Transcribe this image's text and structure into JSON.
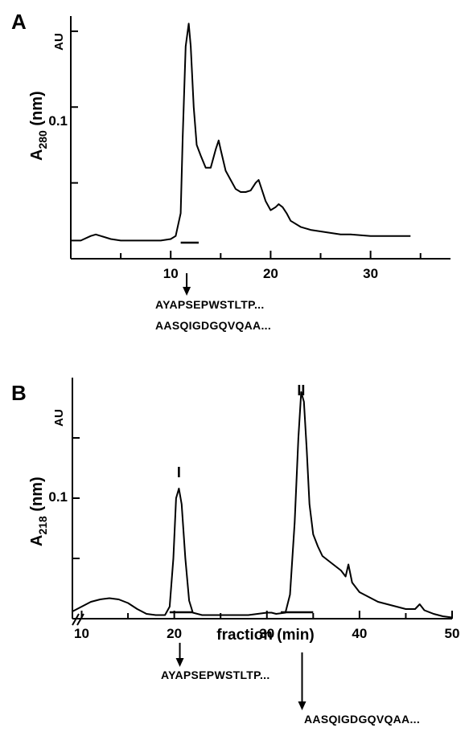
{
  "chart_data": [
    {
      "type": "line",
      "panel": "A",
      "ylabel": "A",
      "ylabel_sub": "280",
      "ylabel_unit": " (nm)",
      "yunit": "AU",
      "ytick_label": "0.1",
      "xlim": [
        0,
        38
      ],
      "ylim": [
        0,
        0.16
      ],
      "xticks": [
        10,
        20,
        30
      ],
      "x_minor_ticks": [
        5,
        15,
        25,
        35
      ],
      "y_ticks": [
        0.05,
        0.1,
        0.15
      ],
      "x": [
        0,
        1,
        2,
        2.5,
        3,
        4,
        5,
        6,
        7,
        8,
        9,
        10,
        10.5,
        11,
        11.2,
        11.5,
        11.8,
        12,
        12.3,
        12.6,
        13,
        13.5,
        14,
        14.5,
        14.8,
        15,
        15.5,
        16,
        16.5,
        17,
        17.5,
        18,
        18.5,
        18.8,
        19,
        19.5,
        20,
        20.5,
        20.8,
        21.2,
        21.6,
        22,
        23,
        24,
        25,
        26,
        27,
        28,
        30,
        32,
        34
      ],
      "y": [
        0.012,
        0.012,
        0.015,
        0.016,
        0.015,
        0.013,
        0.012,
        0.012,
        0.012,
        0.012,
        0.012,
        0.013,
        0.015,
        0.03,
        0.08,
        0.14,
        0.155,
        0.14,
        0.1,
        0.075,
        0.068,
        0.06,
        0.06,
        0.072,
        0.078,
        0.072,
        0.058,
        0.052,
        0.046,
        0.044,
        0.044,
        0.045,
        0.05,
        0.052,
        0.048,
        0.038,
        0.032,
        0.034,
        0.036,
        0.034,
        0.03,
        0.025,
        0.021,
        0.019,
        0.018,
        0.017,
        0.016,
        0.016,
        0.015,
        0.015,
        0.015
      ],
      "collected_fraction": [
        11,
        12.8
      ],
      "arrow_at": 11.6,
      "sequences": [
        "AYAPSEPWSTLTP...",
        "AASQIGDGQVQAA..."
      ]
    },
    {
      "type": "line",
      "panel": "B",
      "ylabel": "A",
      "ylabel_sub": "218",
      "ylabel_unit": " (nm)",
      "yunit": "AU",
      "ytick_label": "0.1",
      "xlabel": "fraction (min)",
      "xlim": [
        9,
        50
      ],
      "ylim": [
        0,
        0.2
      ],
      "xticks": [
        10,
        20,
        30,
        40,
        50
      ],
      "x_minor_ticks": [
        15,
        25,
        35,
        45
      ],
      "y_ticks": [
        0.05,
        0.1,
        0.15
      ],
      "x": [
        9,
        10,
        11,
        12,
        13,
        14,
        15,
        16,
        17,
        18,
        19,
        19.5,
        19.9,
        20.2,
        20.5,
        20.8,
        21.2,
        21.6,
        22,
        23,
        24,
        25,
        26,
        27,
        28,
        29,
        30,
        30.5,
        31,
        32,
        32.5,
        33,
        33.4,
        33.7,
        34,
        34.3,
        34.6,
        35,
        35.5,
        36,
        37,
        38,
        38.5,
        38.8,
        39.2,
        40,
        41,
        42,
        43,
        44,
        45,
        46,
        46.5,
        47,
        48,
        49,
        50
      ],
      "y": [
        0.006,
        0.01,
        0.014,
        0.016,
        0.017,
        0.016,
        0.013,
        0.008,
        0.004,
        0.003,
        0.003,
        0.01,
        0.05,
        0.1,
        0.108,
        0.095,
        0.05,
        0.015,
        0.005,
        0.003,
        0.003,
        0.003,
        0.003,
        0.003,
        0.003,
        0.004,
        0.005,
        0.005,
        0.004,
        0.005,
        0.02,
        0.08,
        0.15,
        0.188,
        0.18,
        0.14,
        0.095,
        0.07,
        0.06,
        0.052,
        0.046,
        0.04,
        0.035,
        0.045,
        0.03,
        0.022,
        0.018,
        0.014,
        0.012,
        0.01,
        0.008,
        0.008,
        0.012,
        0.007,
        0.004,
        0.002,
        0.001
      ],
      "collected_fractions": [
        [
          19.5,
          22
        ],
        [
          31.5,
          35
        ]
      ],
      "peak_labels": [
        {
          "label": "I",
          "x": 20.5
        },
        {
          "label": "II",
          "x": 33.7
        }
      ],
      "arrows_at": [
        20.6,
        33.8
      ],
      "sequences": [
        "AYAPSEPWSTLTP...",
        "AASQIGDGQVQAA..."
      ]
    }
  ]
}
